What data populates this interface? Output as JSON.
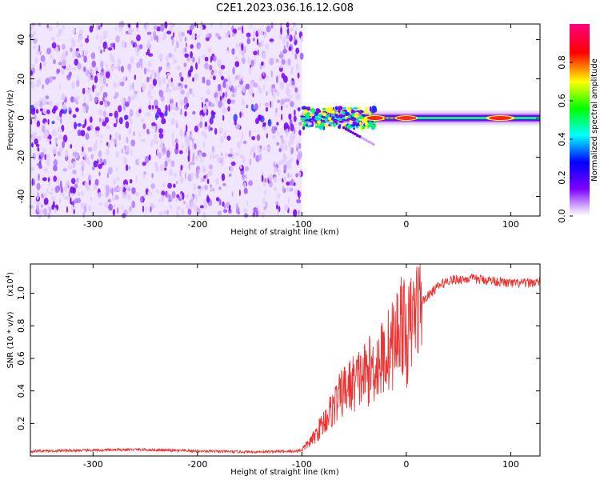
{
  "figure_title": "C2E1.2023.036.16.12.G08",
  "chart_data": [
    {
      "type": "heatmap",
      "name": "spectrogram",
      "xlabel": "Height of straight line (km)",
      "ylabel": "Frequency (Hz)",
      "xlim": [
        -360,
        128
      ],
      "ylim": [
        -50,
        48
      ],
      "xticks": [
        -300,
        -200,
        -100,
        0,
        100
      ],
      "xtick_labels": [
        "-300",
        "-200",
        "-100",
        "0",
        "100"
      ],
      "yticks": [
        -40,
        -20,
        0,
        20,
        40
      ],
      "ytick_labels": [
        "-40",
        "-20",
        "0",
        "20",
        "40"
      ],
      "noise_region_x": [
        -360,
        -100
      ],
      "signal_center_frequency": 0,
      "peak_x": [
        -30,
        0,
        90
      ],
      "colorbar": {
        "label": "Normalized spectral amplitude",
        "range": [
          0.0,
          1.0
        ],
        "ticks": [
          0.0,
          0.2,
          0.4,
          0.6,
          0.8
        ],
        "tick_labels": [
          "0.0",
          "0.2",
          "0.4",
          "0.6",
          "0.8"
        ],
        "colors": [
          "#ffffff",
          "#dcc0ff",
          "#8000ff",
          "#0000ff",
          "#00ffff",
          "#00ff00",
          "#ffff00",
          "#ff0000",
          "#ff00ff"
        ]
      }
    },
    {
      "type": "line",
      "name": "snr",
      "xlabel": "Height of straight line (km)",
      "ylabel": "SNR (10 * v/v)",
      "yscale_label": "(x10",
      "yscale_exp": "4",
      "yscale_close": ")",
      "xlim": [
        -360,
        128
      ],
      "ylim": [
        0,
        1.18
      ],
      "xticks": [
        -300,
        -200,
        -100,
        0,
        100
      ],
      "xtick_labels": [
        "-300",
        "-200",
        "-100",
        "0",
        "100"
      ],
      "yticks": [
        0.2,
        0.4,
        0.6,
        0.8,
        1.0
      ],
      "ytick_labels": [
        "0.2",
        "0.4",
        "0.6",
        "0.8",
        "1.0"
      ],
      "color": "#ee3333",
      "series": [
        {
          "name": "SNR",
          "x": [
            -360,
            -300,
            -260,
            -200,
            -150,
            -105,
            -100,
            -90,
            -80,
            -70,
            -60,
            -50,
            -40,
            -30,
            -20,
            -10,
            -5,
            0,
            5,
            10,
            20,
            30,
            40,
            60,
            80,
            90,
            100,
            110,
            128
          ],
          "values": [
            0.03,
            0.035,
            0.04,
            0.03,
            0.025,
            0.03,
            0.04,
            0.1,
            0.2,
            0.3,
            0.4,
            0.45,
            0.5,
            0.55,
            0.62,
            0.72,
            0.85,
            0.7,
            0.82,
            0.92,
            0.98,
            1.04,
            1.08,
            1.09,
            1.08,
            1.07,
            1.06,
            1.06,
            1.07
          ]
        }
      ]
    }
  ]
}
